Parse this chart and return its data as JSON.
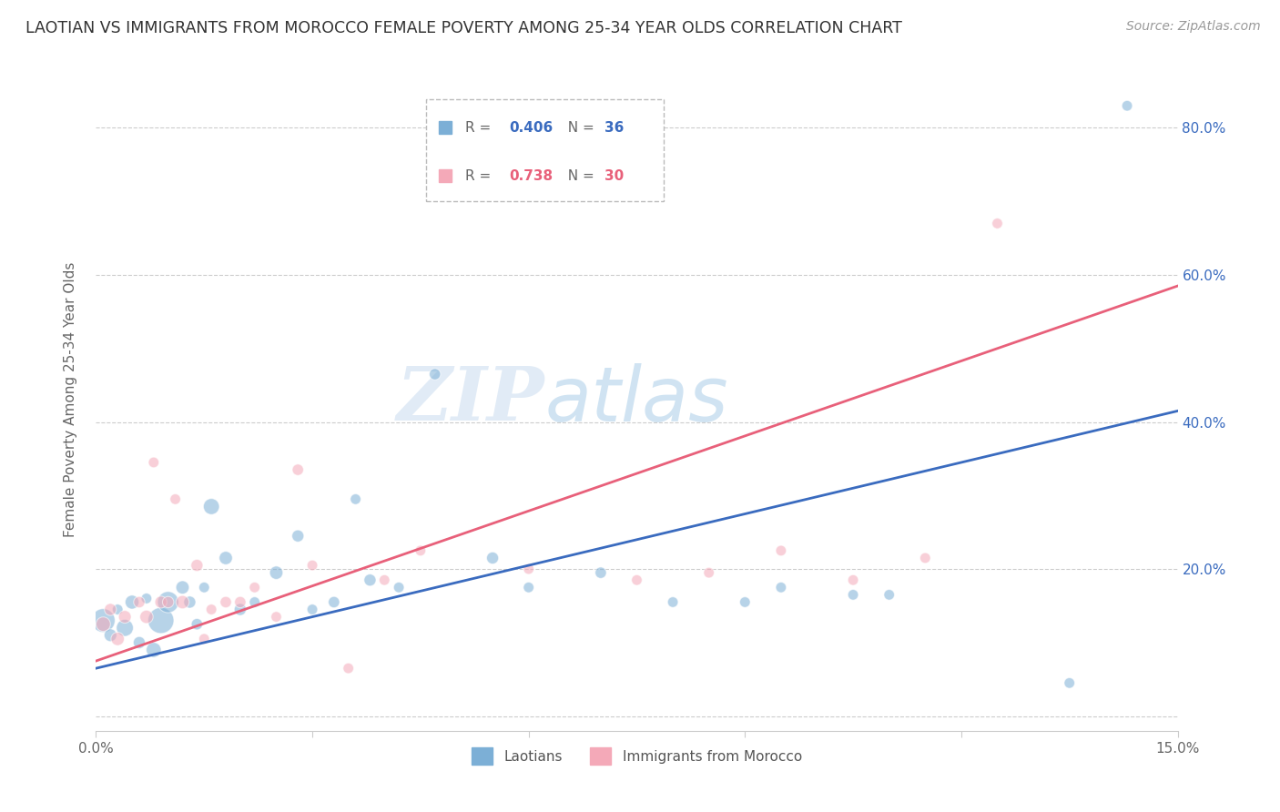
{
  "title": "LAOTIAN VS IMMIGRANTS FROM MOROCCO FEMALE POVERTY AMONG 25-34 YEAR OLDS CORRELATION CHART",
  "source": "Source: ZipAtlas.com",
  "ylabel": "Female Poverty Among 25-34 Year Olds",
  "xlim": [
    0.0,
    0.15
  ],
  "ylim": [
    -0.02,
    0.88
  ],
  "xticks": [
    0.0,
    0.03,
    0.06,
    0.09,
    0.12,
    0.15
  ],
  "xtick_labels": [
    "0.0%",
    "",
    "",
    "",
    "",
    "15.0%"
  ],
  "ytick_positions": [
    0.0,
    0.2,
    0.4,
    0.6,
    0.8
  ],
  "ytick_labels": [
    "",
    "20.0%",
    "40.0%",
    "60.0%",
    "80.0%"
  ],
  "blue_color": "#7cafd6",
  "pink_color": "#f4a9b8",
  "blue_line_color": "#3a6bbf",
  "pink_line_color": "#e8607a",
  "blue_label": "Laotians",
  "pink_label": "Immigrants from Morocco",
  "watermark_zip": "ZIP",
  "watermark_atlas": "atlas",
  "background_color": "#ffffff",
  "blue_line_x0": 0.0,
  "blue_line_y0": 0.065,
  "blue_line_x1": 0.15,
  "blue_line_y1": 0.415,
  "pink_line_x0": 0.0,
  "pink_line_y0": 0.075,
  "pink_line_x1": 0.15,
  "pink_line_y1": 0.585,
  "laotian_x": [
    0.001,
    0.002,
    0.003,
    0.004,
    0.005,
    0.006,
    0.007,
    0.008,
    0.009,
    0.01,
    0.012,
    0.013,
    0.014,
    0.015,
    0.016,
    0.018,
    0.02,
    0.022,
    0.025,
    0.028,
    0.03,
    0.033,
    0.036,
    0.038,
    0.042,
    0.047,
    0.055,
    0.06,
    0.07,
    0.08,
    0.09,
    0.095,
    0.105,
    0.11,
    0.135,
    0.143
  ],
  "laotian_y": [
    0.13,
    0.11,
    0.145,
    0.12,
    0.155,
    0.1,
    0.16,
    0.09,
    0.13,
    0.155,
    0.175,
    0.155,
    0.125,
    0.175,
    0.285,
    0.215,
    0.145,
    0.155,
    0.195,
    0.245,
    0.145,
    0.155,
    0.295,
    0.185,
    0.175,
    0.465,
    0.215,
    0.175,
    0.195,
    0.155,
    0.155,
    0.175,
    0.165,
    0.165,
    0.045,
    0.83
  ],
  "laotian_size": [
    350,
    100,
    70,
    180,
    120,
    90,
    70,
    140,
    420,
    280,
    110,
    90,
    80,
    70,
    160,
    110,
    90,
    70,
    110,
    90,
    70,
    80,
    70,
    90,
    70,
    80,
    90,
    70,
    80,
    70,
    70,
    70,
    70,
    70,
    70,
    70
  ],
  "morocco_x": [
    0.001,
    0.002,
    0.003,
    0.004,
    0.006,
    0.007,
    0.009,
    0.01,
    0.012,
    0.014,
    0.016,
    0.018,
    0.02,
    0.022,
    0.025,
    0.028,
    0.03,
    0.035,
    0.04,
    0.045,
    0.06,
    0.075,
    0.085,
    0.095,
    0.105,
    0.115,
    0.125,
    0.008,
    0.011,
    0.015
  ],
  "morocco_y": [
    0.125,
    0.145,
    0.105,
    0.135,
    0.155,
    0.135,
    0.155,
    0.155,
    0.155,
    0.205,
    0.145,
    0.155,
    0.155,
    0.175,
    0.135,
    0.335,
    0.205,
    0.065,
    0.185,
    0.225,
    0.2,
    0.185,
    0.195,
    0.225,
    0.185,
    0.215,
    0.67,
    0.345,
    0.295,
    0.105
  ],
  "morocco_size": [
    130,
    90,
    110,
    100,
    80,
    110,
    90,
    80,
    110,
    90,
    70,
    80,
    80,
    70,
    70,
    80,
    70,
    70,
    70,
    70,
    70,
    70,
    70,
    70,
    70,
    70,
    70,
    70,
    70,
    70
  ]
}
